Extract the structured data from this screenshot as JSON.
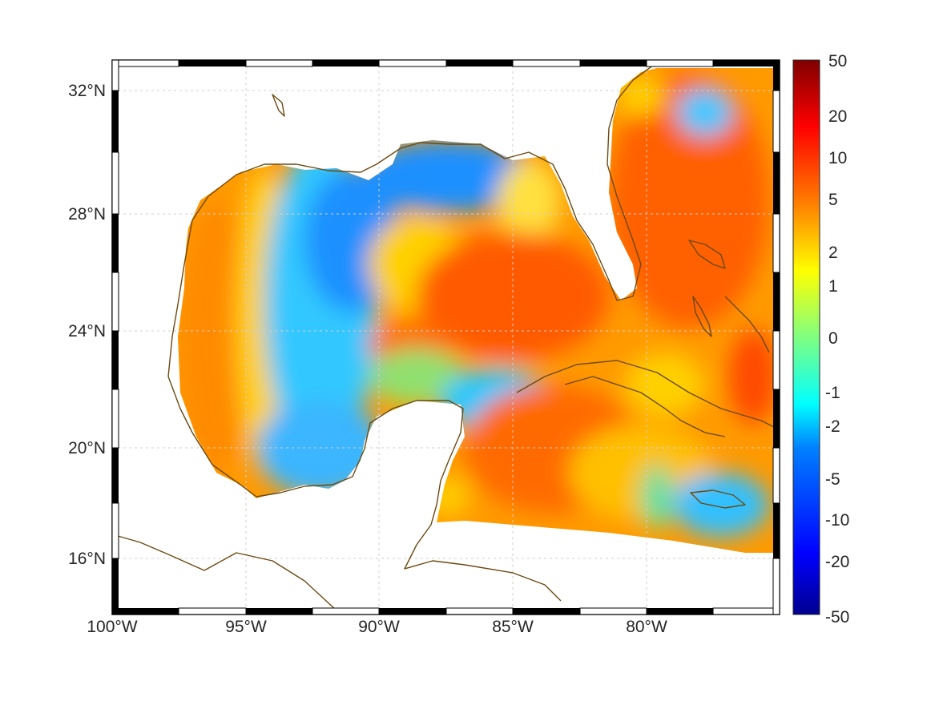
{
  "map": {
    "longitude_labels": [
      "100°W",
      "95°W",
      "90°W",
      "85°W",
      "80°W"
    ],
    "latitude_labels": [
      "32°N",
      "28°N",
      "24°N",
      "20°N",
      "16°N"
    ],
    "colorbar_labels": [
      "50",
      "20",
      "10",
      "5",
      "2",
      "1",
      "0",
      "-1",
      "-2",
      "-5",
      "-10",
      "-20",
      "-50"
    ],
    "coastline_color": "#6b4a12",
    "colormap": [
      "#00008f",
      "#0000ff",
      "#0080ff",
      "#00ffff",
      "#80ff80",
      "#ffff00",
      "#ff8000",
      "#ff0000",
      "#800000"
    ]
  }
}
